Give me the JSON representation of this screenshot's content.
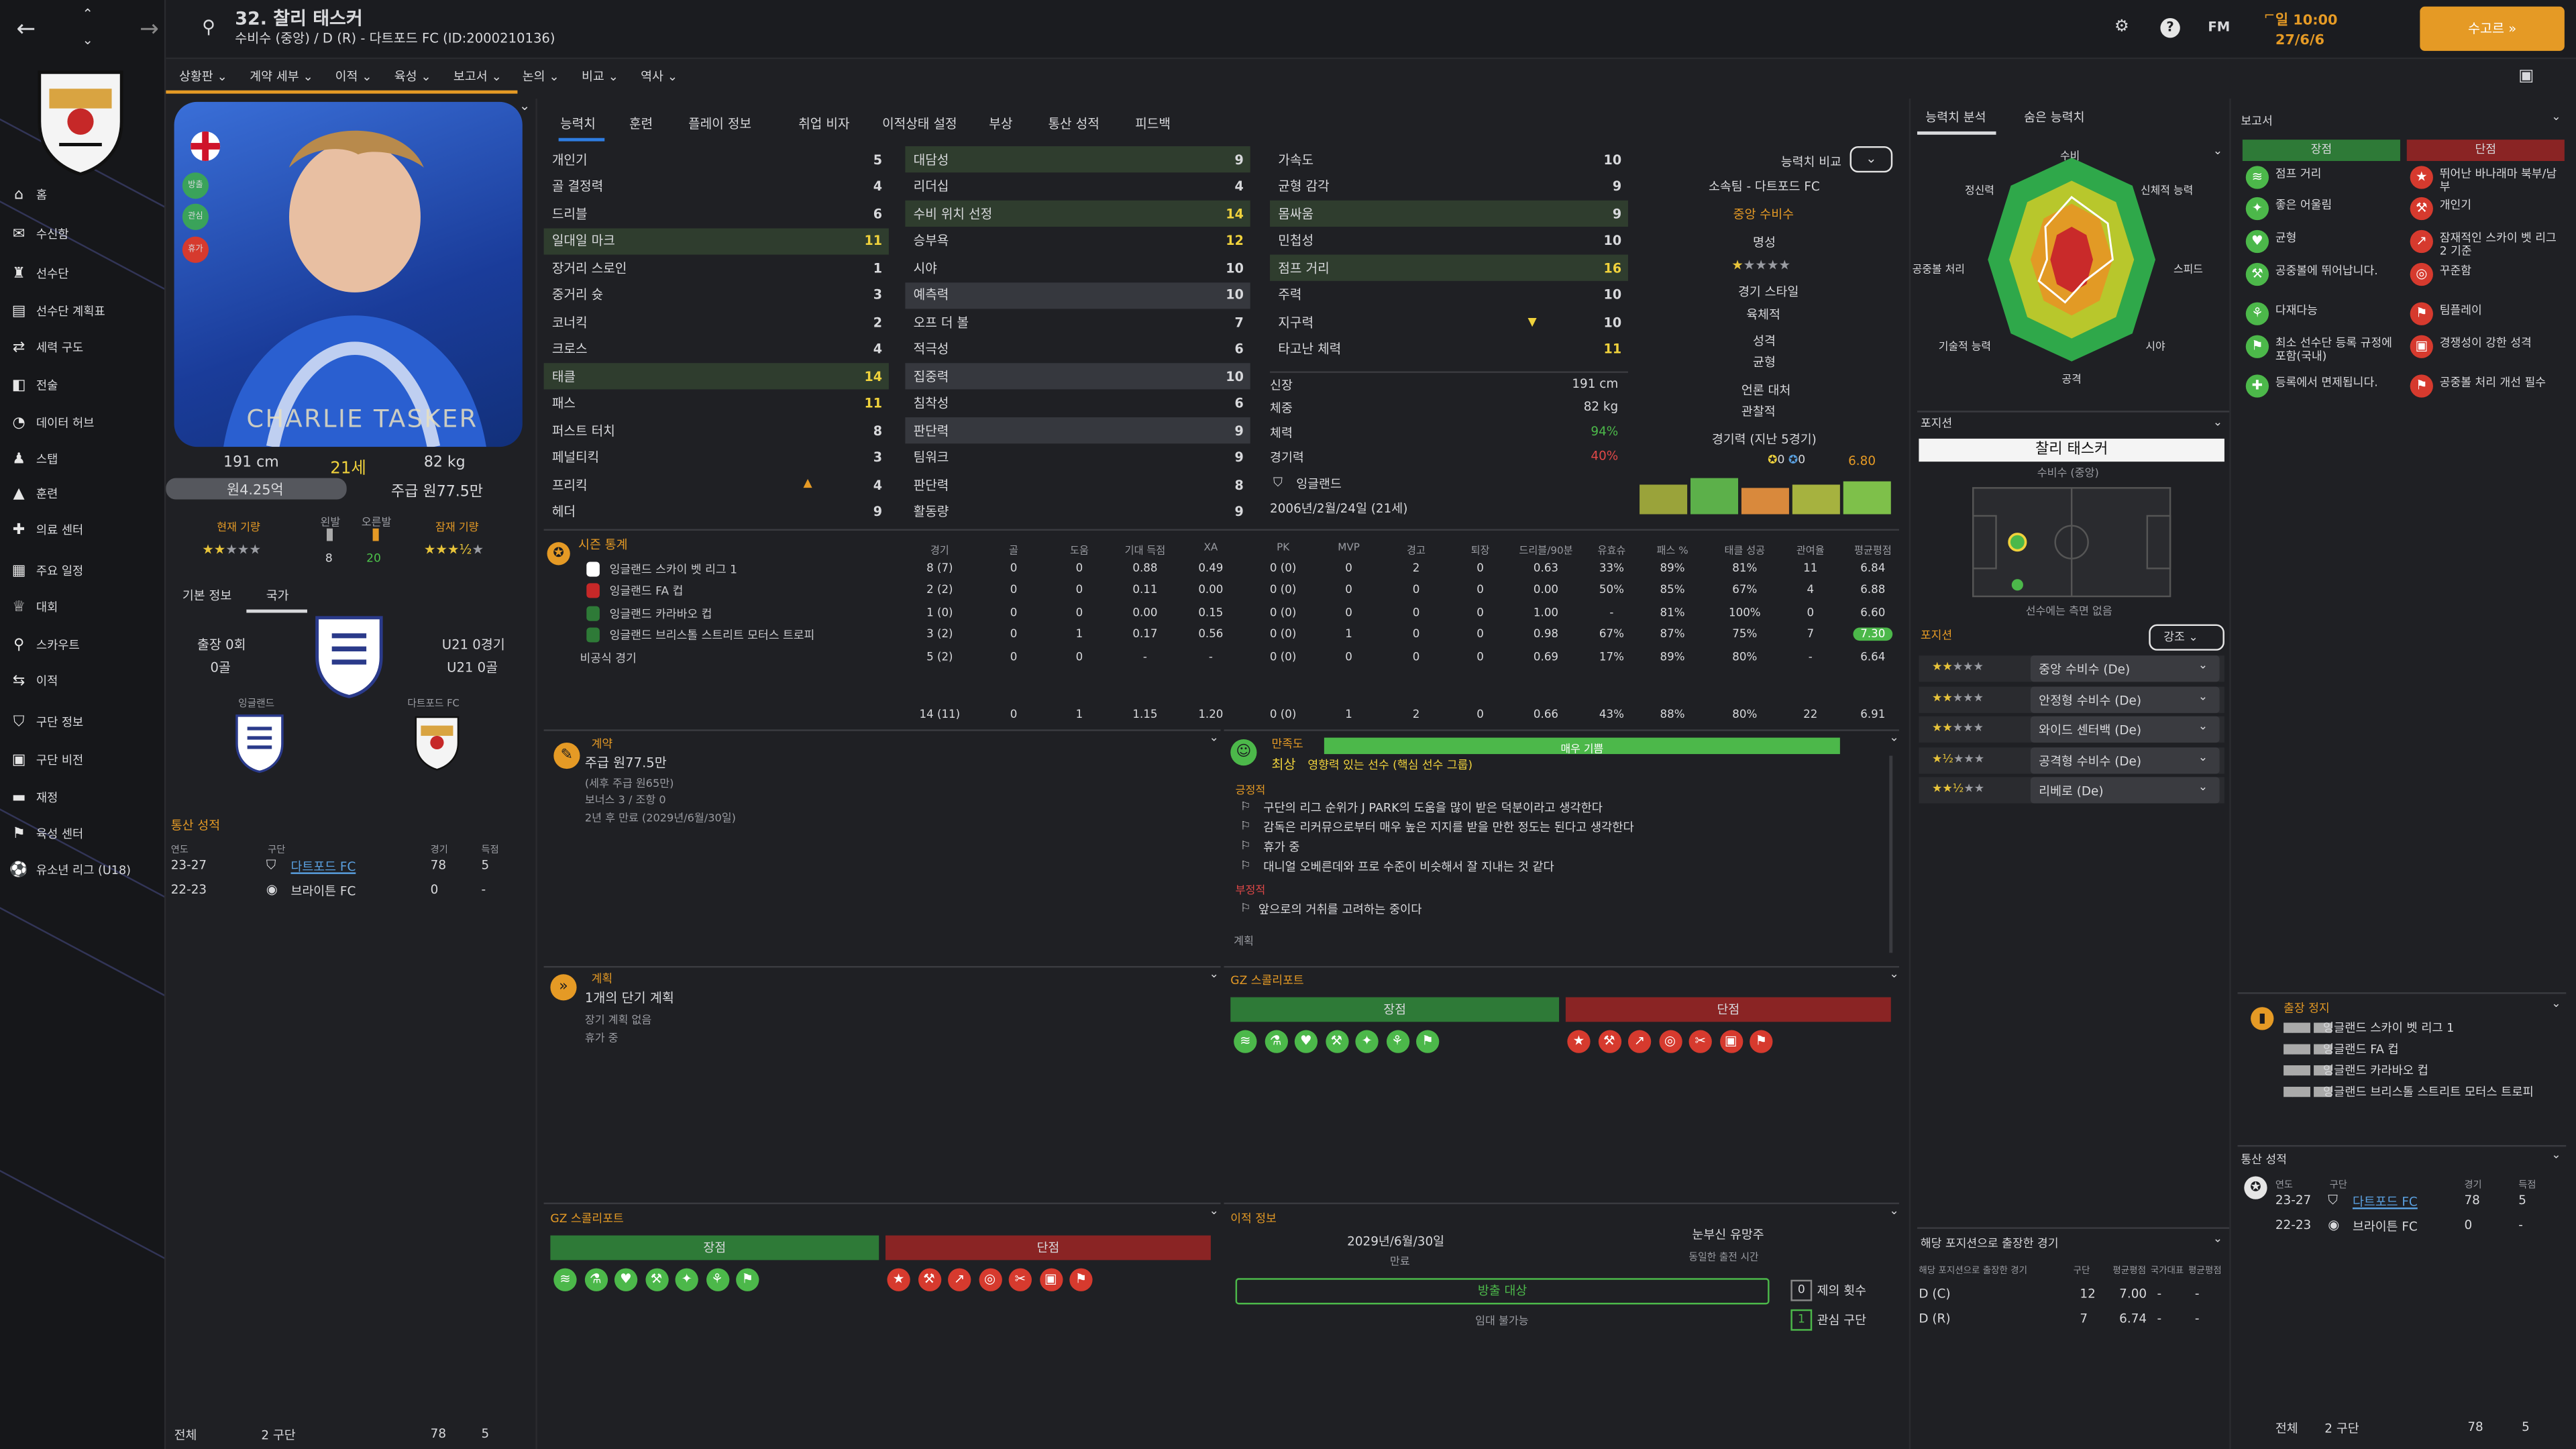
{
  "player": {
    "number_name": "32. 찰리 태스커",
    "sub": "수비수 (중앙) / D (R) - 다트포드 FC (ID:2000210136)",
    "card_name": "CHARLIE TASKER",
    "height": "191 cm",
    "age": "21세",
    "weight": "82 kg",
    "value": "원4.25억",
    "wage": "주급 원77.5만",
    "current": "현재 기량",
    "potential": "잠재 기량",
    "left": "왼발",
    "right": "오른발",
    "left_num": "8",
    "right_num": "20",
    "badge1": "방출",
    "badge2": "관심",
    "badge3": "휴가"
  },
  "topbar": {
    "date_line1": "일 10:00",
    "date_line2": "27/6/6",
    "continue_label": "수고르 »",
    "help": "?",
    "fm": "FM"
  },
  "sidebar": {
    "items": [
      "홈",
      "수신함",
      "선수단",
      "선수단 계획표",
      "세력 구도",
      "전술",
      "데이터 허브",
      "스탭",
      "훈련",
      "의료 센터",
      "주요 일정",
      "대회",
      "스카우트",
      "이적",
      "구단 정보",
      "구단 비전",
      "재정",
      "육성 센터",
      "유소년 리그 (U18)"
    ]
  },
  "menus": [
    "상황판 ⌄",
    "계약 세부 ⌄",
    "이적 ⌄",
    "육성 ⌄",
    "보고서 ⌄",
    "논의 ⌄",
    "비교 ⌄",
    "역사 ⌄"
  ],
  "tabs": [
    "능력치",
    "훈련",
    "플레이 정보",
    "취업 비자",
    "이적상태 설정",
    "부상",
    "통산 성적",
    "피드백"
  ],
  "attr1": [
    [
      "개인기",
      "5"
    ],
    [
      "골 결정력",
      "4"
    ],
    [
      "드리블",
      "6"
    ],
    [
      "일대일 마크",
      "11"
    ],
    [
      "장거리 스로인",
      "1"
    ],
    [
      "중거리 슛",
      "3"
    ],
    [
      "코너킥",
      "2"
    ],
    [
      "크로스",
      "4"
    ],
    [
      "태클",
      "14"
    ],
    [
      "패스",
      "11"
    ],
    [
      "퍼스트 터치",
      "8"
    ],
    [
      "페널티킥",
      "3"
    ],
    [
      "프리킥",
      "4"
    ],
    [
      "헤더",
      "9"
    ]
  ],
  "attr2": [
    [
      "대담성",
      "9"
    ],
    [
      "리더십",
      "4"
    ],
    [
      "수비 위치 선정",
      "14"
    ],
    [
      "승부욕",
      "12"
    ],
    [
      "시야",
      "10"
    ],
    [
      "예측력",
      "10"
    ],
    [
      "오프 더 볼",
      "7"
    ],
    [
      "적극성",
      "6"
    ],
    [
      "집중력",
      "10"
    ],
    [
      "침착성",
      "6"
    ],
    [
      "판단력",
      "9"
    ],
    [
      "팀워크",
      "9"
    ],
    [
      "판단력",
      "8"
    ],
    [
      "활동량",
      "9"
    ]
  ],
  "attr3": [
    [
      "가속도",
      "10"
    ],
    [
      "균형 감각",
      "9"
    ],
    [
      "몸싸움",
      "9"
    ],
    [
      "민첩성",
      "10"
    ],
    [
      "점프 거리",
      "16"
    ],
    [
      "주력",
      "10"
    ],
    [
      "지구력",
      "10"
    ],
    [
      "타고난 체력",
      "11"
    ]
  ],
  "phys": {
    "height_l": "신장",
    "height_v": "191 cm",
    "weight_l": "체중",
    "weight_v": "82 kg",
    "cond_l": "체력",
    "cond_v": "94%",
    "sharp_l": "경기력",
    "sharp_v": "40%",
    "nation": "잉글랜드",
    "dob": "2006년/2월/24일 (21세)"
  },
  "info": {
    "compare": "능력치 비교",
    "club": "소속팀 - 다트포드 FC",
    "position": "중앙 수비수",
    "rep": "명성",
    "style": "경기 스타일",
    "foot": "육체적",
    "pers": "성격",
    "pers_v": "균형",
    "media": "언론 대처",
    "media_v": "관찰적",
    "form_title": "경기력 (지난 5경기)",
    "form_a": "0",
    "form_b": "0",
    "form_rating": "6.80"
  },
  "stats": {
    "title": "시즌 통계",
    "headers": [
      "경기",
      "골",
      "도움",
      "기대 득점",
      "XA",
      "PK",
      "MVP",
      "경고",
      "퇴장",
      "드리블/90분",
      "유효슈",
      "패스 %",
      "태클 성공",
      "관여율",
      "평균평점"
    ],
    "rows": [
      [
        "잉글랜드 스카이 벳 리그 1",
        "8 (7)",
        "0",
        "0",
        "0.88",
        "0.49",
        "0 (0)",
        "0",
        "2",
        "0",
        "0.63",
        "33%",
        "89%",
        "81%",
        "11",
        "6.84"
      ],
      [
        "잉글랜드 FA 컵",
        "2 (2)",
        "0",
        "0",
        "0.11",
        "0.00",
        "0 (0)",
        "0",
        "0",
        "0",
        "0.00",
        "50%",
        "85%",
        "67%",
        "4",
        "6.88"
      ],
      [
        "잉글랜드 카라바오 컵",
        "1 (0)",
        "0",
        "0",
        "0.00",
        "0.15",
        "0 (0)",
        "0",
        "0",
        "0",
        "1.00",
        "-",
        "81%",
        "100%",
        "0",
        "6.60"
      ],
      [
        "잉글랜드 브리스톨 스트리트 모터스 트로피",
        "3 (2)",
        "0",
        "1",
        "0.17",
        "0.56",
        "0 (0)",
        "1",
        "0",
        "0",
        "0.98",
        "67%",
        "87%",
        "75%",
        "7",
        "7.30"
      ],
      [
        "비공식 경기",
        "5 (2)",
        "0",
        "0",
        "-",
        "-",
        "0 (0)",
        "0",
        "0",
        "0",
        "0.69",
        "17%",
        "89%",
        "80%",
        "-",
        "6.64"
      ]
    ],
    "total": [
      "14 (11)",
      "0",
      "1",
      "1.15",
      "1.20",
      "0 (0)",
      "1",
      "2",
      "0",
      "0.66",
      "43%",
      "88%",
      "80%",
      "22",
      "6.91"
    ]
  },
  "contract": {
    "title": "계약",
    "wage": "주급 원77.5만",
    "wage_sub": "(세후 주급 원65만)",
    "bonus": "보너스 3 / 조항 0",
    "expiry": "2년 후 만료 (2029년/6월/30일)"
  },
  "happy": {
    "title": "만족도",
    "status": "매우 기쁨",
    "level": "최상",
    "role": "영향력 있는 선수 (핵심 선수 그룹)",
    "pos_title": "긍정적",
    "positives": [
      "구단의 리그 순위가 J PARK의 도움을 많이 받은 덕분이라고 생각한다",
      "감독은 리커뮤으로부터 매우 높은 지지를 받을 만한 정도는 된다고 생각한다",
      "휴가 중",
      "대니얼 오베른데와 프로 수준이 비슷해서 잘 지내는 것 같다"
    ],
    "neg_title": "부정적",
    "negatives": [
      "앞으로의 거취를 고려하는 중이다"
    ],
    "plan": "계획"
  },
  "plan": {
    "title": "계획",
    "name": "1개의 단기 계획",
    "sub1": "장기 계획 없음",
    "sub2": "휴가 중"
  },
  "scout": {
    "title": "GZ 스콜리포트",
    "strengths": "장점",
    "weaknesses": "단점"
  },
  "transfer": {
    "title": "이적 정보",
    "date": "2029년/6월/30일",
    "date_l": "만료",
    "release": "눈부신 유망주",
    "release_l": "동일한 출전 시간",
    "status": "방출 대상",
    "status_sub": "임대 불가능",
    "interest_n": "0",
    "interest_l": "제의 횟수",
    "interest2_n": "1",
    "interest2_l": "관심 구단"
  },
  "basic": {
    "tab1": "기본 정보",
    "tab2": "국가",
    "caps": "출장 0회",
    "goals": "0골",
    "u21": "U21 0경기",
    "u21g": "U21 0골",
    "nation": "잉글랜드",
    "club": "다트포드 FC",
    "hist_title": "통산 성적",
    "hist_head": [
      "연도",
      "구단",
      "경기",
      "득점"
    ],
    "hist": [
      [
        "23-27",
        "다트포드 FC",
        "78",
        "5"
      ],
      [
        "22-23",
        "브라이튼 FC",
        "0",
        "-"
      ]
    ],
    "total_label": "전체",
    "total_clubs": "2 구단",
    "total_apps": "78",
    "total_goals": "5"
  },
  "radar": {
    "tab1": "능력치 분석",
    "tab2": "숨은 능력치",
    "labels": [
      "수비",
      "신체적 능력",
      "스피드",
      "시야",
      "공격",
      "기술적 능력",
      "공중볼 처리",
      "정신력"
    ]
  },
  "position": {
    "title": "포지션",
    "name": "찰리 태스커",
    "role": "수비수 (중앙)",
    "note": "선수에는 측면 없음",
    "roles_title": "포지션",
    "emph": "강조",
    "roles": [
      "중앙 수비수 (De)",
      "안정형 수비수 (De)",
      "와이드 센터백 (De)",
      "공격형 수비수 (De)",
      "리베로 (De)"
    ],
    "apps_title": "해당 포지션으로 출장한 경기",
    "apps_head": [
      "해당 포지션으로 출장한 경기",
      "구단",
      "평균평점",
      "국가대표",
      "평균평점"
    ],
    "apps": [
      [
        "D (C)",
        "12",
        "7.00",
        "-",
        "-"
      ],
      [
        "D (R)",
        "7",
        "6.74",
        "-",
        "-"
      ]
    ]
  },
  "report": {
    "title": "보고서",
    "strengths": "장점",
    "weaknesses": "단점",
    "pro": [
      "점프 거리",
      "좋은 어울림",
      "균형",
      "공중볼에 뛰어납니다.",
      "다재다능",
      "최소 선수단 등록 규정에 포함(국내)",
      "등록에서 면제됩니다."
    ],
    "con": [
      "뛰어난 바나래마 북부/남부",
      "개인기",
      "잠재적인 스카이 벳 리그 2 기준",
      "꾸준함",
      "팀플레이",
      "경쟁성이 강한 성격",
      "공중볼 처리 개선 필수"
    ],
    "susp_title": "출장 정지",
    "susp": [
      "잉글랜드 스카이 벳 리그 1",
      "잉글랜드 FA 컵",
      "잉글랜드 카라바오 컵",
      "잉글랜드 브리스톨 스트리트 모터스 트로피"
    ],
    "hist_title": "통산 성적"
  },
  "colors": {
    "accent": "#e59a25",
    "green": "#4cb84a",
    "red": "#d63a2e",
    "bg": "#1f2024"
  }
}
